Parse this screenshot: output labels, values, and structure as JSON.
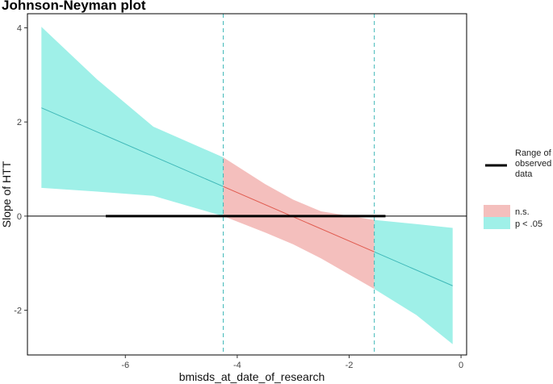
{
  "chart_data": {
    "type": "line",
    "title": "Johnson-Neyman plot",
    "xlabel": "bmisds_at_date_of_research",
    "ylabel": "Slope of HTT",
    "xlim": [
      -7.75,
      0.1
    ],
    "ylim": [
      -2.95,
      4.3
    ],
    "x_ticks": [
      -6,
      -4,
      -2,
      0
    ],
    "y_ticks": [
      -2,
      0,
      2,
      4
    ],
    "grid": false,
    "slope_line": {
      "x_start": -7.5,
      "y_start": 2.3,
      "x_end": -0.15,
      "y_end": -1.48
    },
    "confidence_band": {
      "x": [
        -7.5,
        -6.5,
        -5.5,
        -4.25,
        -3.5,
        -3.0,
        -2.5,
        -1.55,
        -0.8,
        -0.15
      ],
      "upper": [
        4.02,
        2.9,
        1.9,
        1.25,
        0.68,
        0.35,
        0.1,
        -0.08,
        -0.17,
        -0.25
      ],
      "lower": [
        0.6,
        0.52,
        0.43,
        0.0,
        -0.35,
        -0.6,
        -0.9,
        -1.55,
        -2.1,
        -2.72
      ]
    },
    "jn_bounds": [
      -4.25,
      -1.55
    ],
    "observed_range": [
      -6.35,
      -1.35
    ],
    "regions": [
      {
        "label": "p < .05",
        "x_from": -7.5,
        "x_to": -4.25,
        "line_color": "#3fb8b8",
        "fill_color": "#9ff0e8"
      },
      {
        "label": "n.s.",
        "x_from": -4.25,
        "x_to": -1.55,
        "line_color": "#e05a4e",
        "fill_color": "#f4bfbd"
      },
      {
        "label": "p < .05",
        "x_from": -1.55,
        "x_to": -0.15,
        "line_color": "#3fb8b8",
        "fill_color": "#9ff0e8"
      }
    ],
    "legend": {
      "position": "right",
      "observed_label_lines": [
        "Range of",
        "observed",
        "data"
      ],
      "items": [
        {
          "label": "n.s.",
          "color": "#f4bfbd"
        },
        {
          "label": "p < .05",
          "color": "#9ff0e8"
        }
      ]
    }
  }
}
